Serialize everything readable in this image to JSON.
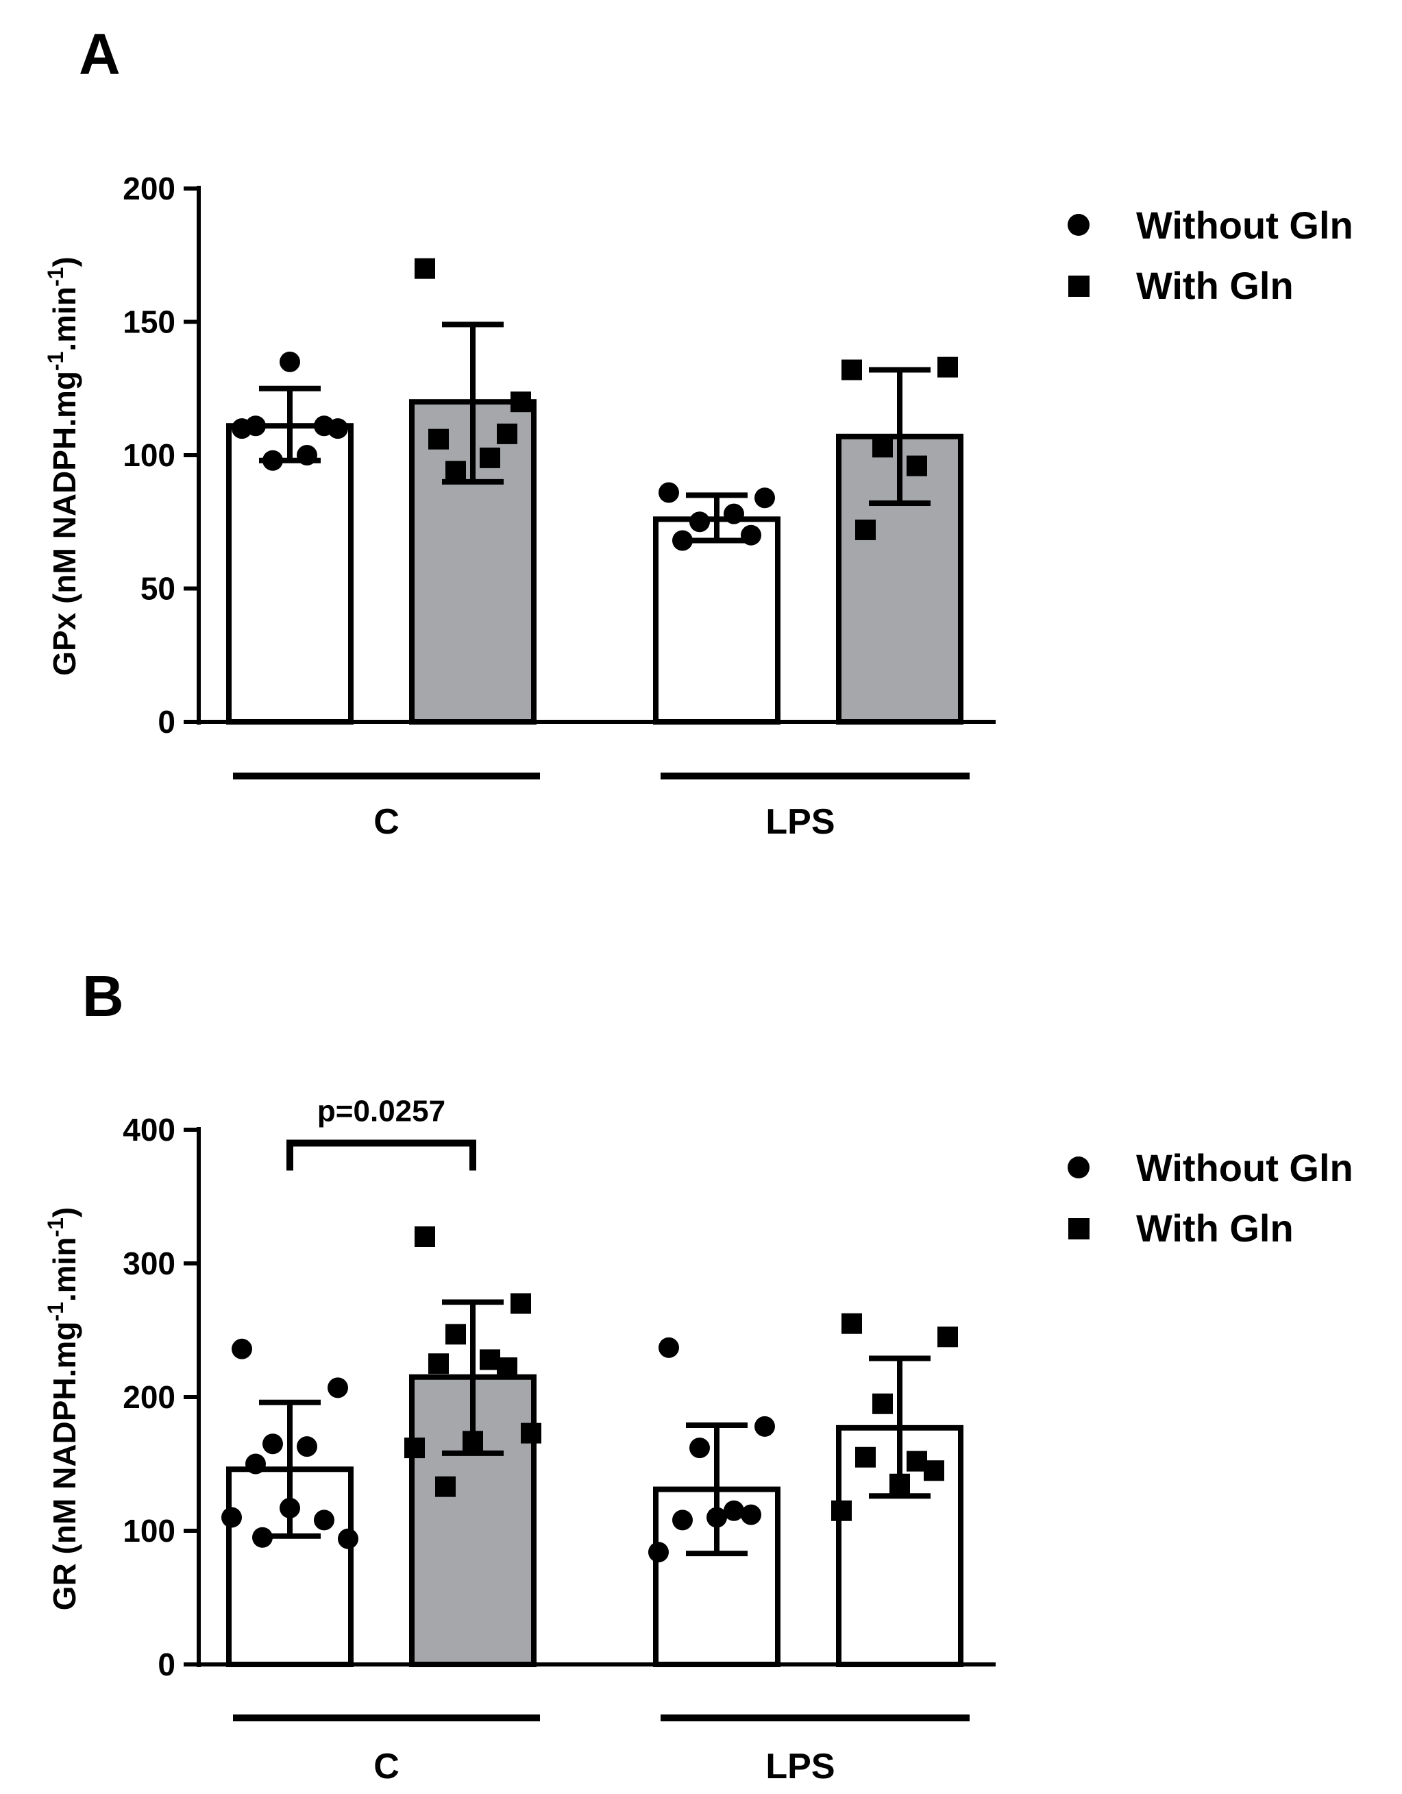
{
  "chart_data": [
    {
      "panel": "A",
      "type": "bar",
      "ylabel_main": "GPx (nM NADPH.mg",
      "ylabel_sup1": "-1",
      "ylabel_mid": ".min",
      "ylabel_sup2": "-1",
      "ylabel_end": ")",
      "ylim": [
        0,
        200
      ],
      "yticks": [
        "0",
        "50",
        "100",
        "150",
        "200"
      ],
      "groups": [
        "C",
        "LPS"
      ],
      "legend": [
        "Without Gln",
        "With Gln"
      ],
      "bars": [
        {
          "group": "C",
          "series": "Without Gln",
          "fill": "#ffffff",
          "mean": 111,
          "err_low": 98,
          "err_high": 125,
          "points": [
            110,
            110,
            98,
            100,
            111,
            111,
            135
          ],
          "marker": "circle"
        },
        {
          "group": "C",
          "series": "With Gln",
          "fill": "#a6a7ab",
          "mean": 120,
          "err_low": 90,
          "err_high": 149,
          "points": [
            170,
            120,
            94,
            99,
            106,
            108
          ],
          "marker": "square"
        },
        {
          "group": "LPS",
          "series": "Without Gln",
          "fill": "#ffffff",
          "mean": 76,
          "err_low": 68,
          "err_high": 85,
          "points": [
            86,
            84,
            75,
            78,
            68,
            70
          ],
          "marker": "circle"
        },
        {
          "group": "LPS",
          "series": "With Gln",
          "fill": "#a6a7ab",
          "mean": 107,
          "err_low": 82,
          "err_high": 132,
          "points": [
            132,
            133,
            103,
            96,
            72
          ],
          "marker": "square"
        }
      ]
    },
    {
      "panel": "B",
      "type": "bar",
      "ylabel_main": "GR (nM NADPH.mg",
      "ylabel_sup1": "-1",
      "ylabel_mid": ".min",
      "ylabel_sup2": "-1",
      "ylabel_end": ")",
      "ylim": [
        0,
        400
      ],
      "yticks": [
        "0",
        "100",
        "200",
        "300",
        "400"
      ],
      "groups": [
        "C",
        "LPS"
      ],
      "legend": [
        "Without Gln",
        "With Gln"
      ],
      "annotation": {
        "text": "p=0.0257",
        "from_bar": 0,
        "to_bar": 1,
        "y": 390
      },
      "bars": [
        {
          "group": "C",
          "series": "Without Gln",
          "fill": "#ffffff",
          "mean": 146,
          "err_low": 96,
          "err_high": 196,
          "points": [
            236,
            207,
            165,
            163,
            150,
            108,
            117,
            110,
            94,
            95
          ],
          "marker": "circle"
        },
        {
          "group": "C",
          "series": "With Gln",
          "fill": "#a6a7ab",
          "mean": 215,
          "err_low": 158,
          "err_high": 271,
          "points": [
            320,
            270,
            247,
            228,
            225,
            222,
            167,
            162,
            173,
            133
          ],
          "marker": "square"
        },
        {
          "group": "LPS",
          "series": "Without Gln",
          "fill": "#ffffff",
          "mean": 131,
          "err_low": 83,
          "err_high": 179,
          "points": [
            237,
            178,
            162,
            115,
            108,
            112,
            110,
            84
          ],
          "marker": "circle"
        },
        {
          "group": "LPS",
          "series": "With Gln",
          "fill": "#ffffff",
          "mean": 177,
          "err_low": 126,
          "err_high": 229,
          "points": [
            255,
            245,
            195,
            152,
            155,
            145,
            135,
            115
          ],
          "marker": "square"
        }
      ]
    }
  ]
}
